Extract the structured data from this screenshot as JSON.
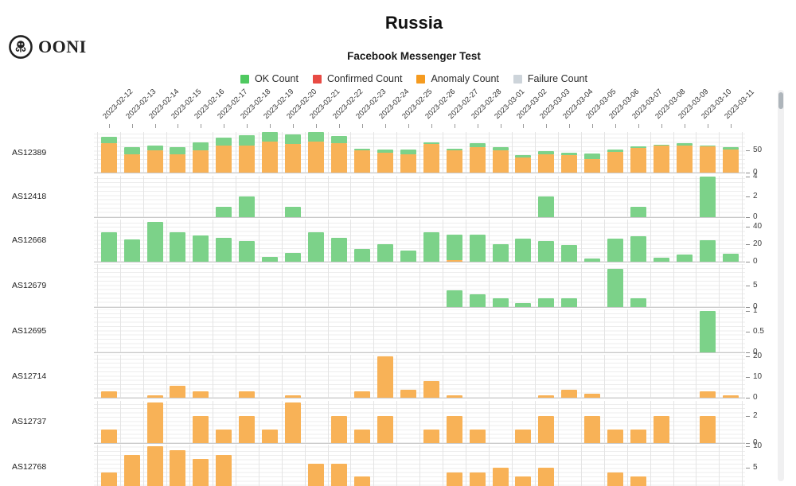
{
  "brand": {
    "wordmark": "OONI"
  },
  "header": {
    "title": "Russia",
    "subtitle": "Facebook Messenger Test"
  },
  "legend": {
    "items": [
      {
        "key": "ok",
        "label": "OK Count",
        "color": "#4FC960"
      },
      {
        "key": "confirmed",
        "label": "Confirmed Count",
        "color": "#E84B44"
      },
      {
        "key": "anomaly",
        "label": "Anomaly Count",
        "color": "#F59B20"
      },
      {
        "key": "failure",
        "label": "Failure Count",
        "color": "#CDD4DA"
      }
    ]
  },
  "chart_data": {
    "type": "bar",
    "stacked": true,
    "grid": true,
    "legend_position": "top",
    "x_dates": [
      "2023-02-12",
      "2023-02-13",
      "2023-02-14",
      "2023-02-15",
      "2023-02-16",
      "2023-02-17",
      "2023-02-18",
      "2023-02-19",
      "2023-02-20",
      "2023-02-21",
      "2023-02-22",
      "2023-02-23",
      "2023-02-24",
      "2023-02-25",
      "2023-02-26",
      "2023-02-27",
      "2023-02-28",
      "2023-03-01",
      "2023-03-02",
      "2023-03-03",
      "2023-03-04",
      "2023-03-05",
      "2023-03-06",
      "2023-03-07",
      "2023-03-08",
      "2023-03-09",
      "2023-03-10",
      "2023-03-11"
    ],
    "bar_colors": {
      "ok": "#7CD289",
      "anomaly": "#F8B257",
      "confirmed": "#EF7A74",
      "failure": "#DDE2E6"
    },
    "panels": [
      {
        "asn": "AS12389",
        "ylim": [
          0,
          92
        ],
        "yticks": [
          0,
          50
        ],
        "series": {
          "anomaly": [
            66,
            41,
            50,
            42,
            50,
            61,
            61,
            70,
            65,
            70,
            66,
            50,
            45,
            41,
            65,
            50,
            58,
            50,
            35,
            41,
            39,
            31,
            47,
            56,
            62,
            62,
            59,
            53
          ],
          "ok": [
            16,
            17,
            12,
            15,
            19,
            19,
            23,
            22,
            21,
            22,
            17,
            5,
            7,
            11,
            4,
            5,
            8,
            8,
            4,
            8,
            6,
            12,
            5,
            4,
            2,
            4,
            3,
            5
          ]
        }
      },
      {
        "asn": "AS12418",
        "ylim": [
          0,
          4.15
        ],
        "yticks": [
          0,
          2,
          4
        ],
        "series": {
          "ok": [
            0,
            0,
            0,
            0,
            0,
            1,
            2,
            0,
            1,
            0,
            0,
            0,
            0,
            0,
            0,
            0,
            0,
            0,
            0,
            2,
            0,
            0,
            0,
            1,
            0,
            0,
            4,
            0
          ]
        }
      },
      {
        "asn": "AS12668",
        "ylim": [
          0,
          48
        ],
        "yticks": [
          0,
          20,
          40
        ],
        "series": {
          "anomaly": [
            0,
            0,
            0,
            0,
            0,
            0,
            0,
            0,
            0,
            0,
            0,
            0,
            0,
            0,
            0,
            1,
            0,
            0,
            0,
            0,
            0,
            0,
            0,
            0,
            0,
            0,
            0,
            0
          ],
          "ok": [
            33,
            25,
            45,
            33,
            30,
            27,
            23,
            5,
            10,
            33,
            27,
            14,
            20,
            12,
            33,
            30,
            31,
            20,
            26,
            23,
            19,
            3,
            26,
            29,
            4,
            8,
            24,
            9
          ]
        }
      },
      {
        "asn": "AS12679",
        "ylim": [
          0,
          10.1
        ],
        "yticks": [
          0,
          5
        ],
        "series": {
          "ok": [
            0,
            0,
            0,
            0,
            0,
            0,
            0,
            0,
            0,
            0,
            0,
            0,
            0,
            0,
            0,
            4,
            3,
            2,
            1,
            2,
            2,
            0,
            9,
            2,
            0,
            0,
            0,
            0
          ]
        }
      },
      {
        "asn": "AS12695",
        "ylim": [
          0,
          1.04
        ],
        "yticks": [
          0,
          0.5,
          1
        ],
        "series": {
          "ok": [
            0,
            0,
            0,
            0,
            0,
            0,
            0,
            0,
            0,
            0,
            0,
            0,
            0,
            0,
            0,
            0,
            0,
            0,
            0,
            0,
            0,
            0,
            0,
            0,
            0,
            0,
            1,
            0
          ]
        }
      },
      {
        "asn": "AS12714",
        "ylim": [
          0,
          20.9
        ],
        "yticks": [
          0,
          10,
          20
        ],
        "series": {
          "anomaly": [
            3,
            0,
            1,
            6,
            3,
            0,
            3,
            0,
            1,
            0,
            0,
            3,
            20,
            4,
            8,
            1,
            0,
            0,
            0,
            1,
            4,
            2,
            0,
            0,
            0,
            0,
            3,
            1
          ]
        }
      },
      {
        "asn": "AS12737",
        "ylim": [
          0,
          3.17
        ],
        "yticks": [
          0,
          2
        ],
        "series": {
          "anomaly": [
            1,
            0,
            3,
            0,
            2,
            1,
            2,
            1,
            3,
            0,
            2,
            1,
            2,
            0,
            1,
            2,
            1,
            0,
            1,
            2,
            0,
            2,
            1,
            1,
            2,
            0,
            2,
            0
          ]
        }
      },
      {
        "asn": "AS12768",
        "ylim": [
          0,
          10.4
        ],
        "yticks": [
          5,
          10
        ],
        "series": {
          "anomaly": [
            4,
            8,
            10,
            9,
            7,
            8,
            0,
            0,
            0,
            6,
            6,
            3,
            0,
            0,
            0,
            4,
            4,
            5,
            3,
            5,
            0,
            0,
            4,
            3,
            0,
            0,
            0,
            0
          ]
        }
      }
    ]
  }
}
